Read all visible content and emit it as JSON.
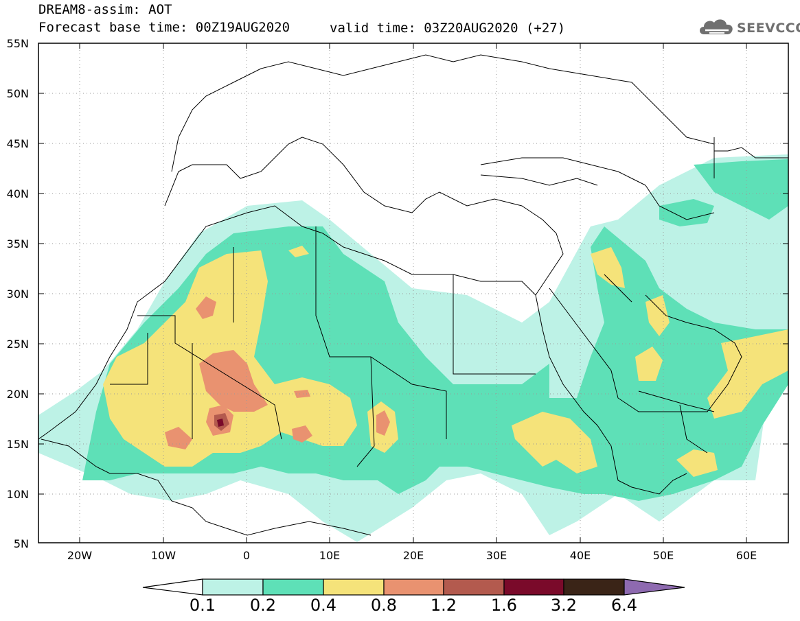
{
  "header": {
    "title": "DREAM8-assim: AOT",
    "base_time": "Forecast base time: 00Z19AUG2020",
    "valid_time": "valid time: 03Z20AUG2020 (+27)"
  },
  "logo": {
    "text": "SEEVCCC",
    "icon": "cloud-icon"
  },
  "map": {
    "lat_labels": [
      "55N",
      "50N",
      "45N",
      "40N",
      "35N",
      "30N",
      "25N",
      "20N",
      "15N",
      "10N",
      "5N"
    ],
    "lon_labels": [
      "20W",
      "10W",
      "0",
      "10E",
      "20E",
      "30E",
      "40E",
      "50E",
      "60E"
    ],
    "lon_range": [
      -25,
      65
    ],
    "lat_range": [
      5,
      55
    ]
  },
  "colorbar": {
    "labels": [
      "0.1",
      "0.2",
      "0.4",
      "0.8",
      "1.2",
      "1.6",
      "3.2",
      "6.4"
    ],
    "colors": [
      "#bdf2e6",
      "#5ee0b7",
      "#f5e37a",
      "#e99270",
      "#b35a4e",
      "#7a0a2a",
      "#3a2417",
      "#8e6ab0"
    ]
  }
}
